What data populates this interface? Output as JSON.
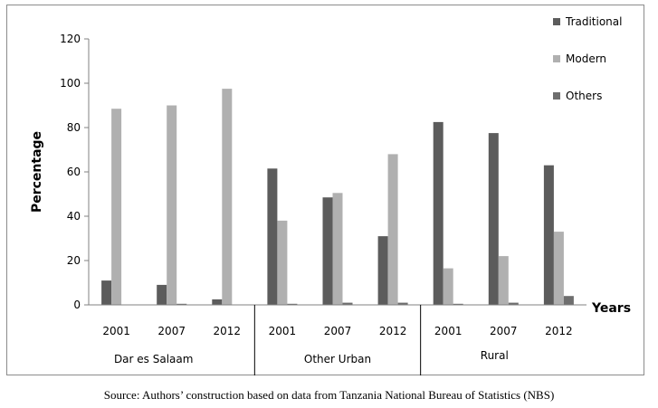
{
  "source_note": "Source: Authors’ construction based on data from Tanzania National Bureau of Statistics (NBS)",
  "colors": {
    "Traditional": "#5c5c5c",
    "Modern": "#b0b0b0",
    "Others": "#6e6e6e",
    "axis": "#808080",
    "frame": "#8c8c8c"
  },
  "chart_data": {
    "type": "bar",
    "title": "",
    "xlabel": "Years",
    "ylabel": "Percentage",
    "ylim": [
      0,
      120
    ],
    "yticks": [
      0,
      20,
      40,
      60,
      80,
      100,
      120
    ],
    "grid": false,
    "legend_position": "right",
    "groups": [
      {
        "name": "Dar es Salaam",
        "years": [
          "2001",
          "2007",
          "2012"
        ]
      },
      {
        "name": "Other Urban",
        "years": [
          "2001",
          "2007",
          "2012"
        ]
      },
      {
        "name": "Rural",
        "years": [
          "2001",
          "2007",
          "2012"
        ]
      }
    ],
    "series": [
      {
        "name": "Traditional",
        "values": [
          11,
          9,
          2.5,
          61.5,
          48.5,
          31,
          82.5,
          77.5,
          63
        ]
      },
      {
        "name": "Modern",
        "values": [
          88.5,
          90,
          97.5,
          38,
          50.5,
          68,
          16.5,
          22,
          33
        ]
      },
      {
        "name": "Others",
        "values": [
          0,
          0.5,
          0,
          0.5,
          1,
          1,
          0.5,
          1,
          4
        ]
      }
    ]
  }
}
